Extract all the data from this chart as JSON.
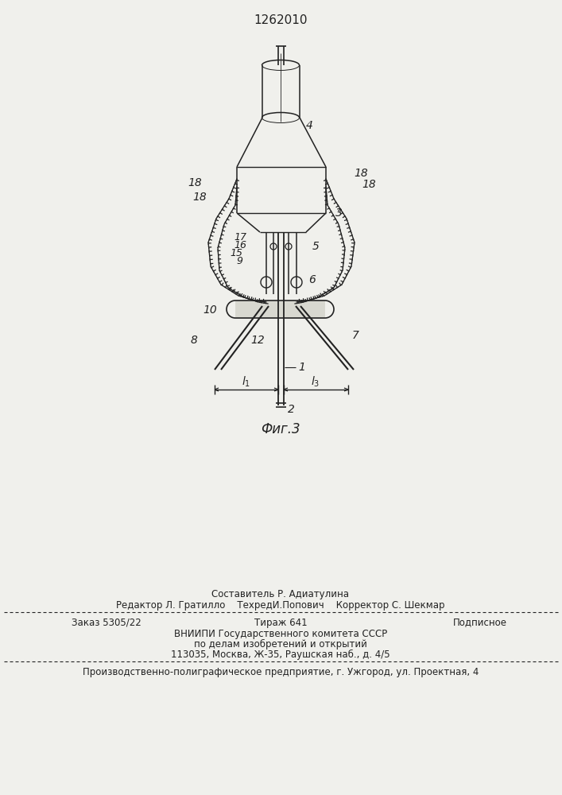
{
  "patent_number": "1262010",
  "fig_label": "Фиг.3",
  "bg_color": "#f0f0ec",
  "line_color": "#222222",
  "text_color": "#222222",
  "footer_c1": "Составитель Р. Адиатулина",
  "footer_c2": "Редактор Л. Гратилло    ТехредИ.Попович    Корректор С. Шекмар",
  "footer_d1": "Заказ 5305/22",
  "footer_d2": "Тираж 641",
  "footer_d3": "Подписное",
  "footer_e1": "ВНИИПИ Государственного комитета СССР",
  "footer_e2": "по делам изобретений и открытий",
  "footer_e3": "113035, Москва, Ж-35, Раушская наб., д. 4/5",
  "footer_f": "Производственно-полиграфическое предприятие, г. Ужгород, ул. Проектная, 4"
}
